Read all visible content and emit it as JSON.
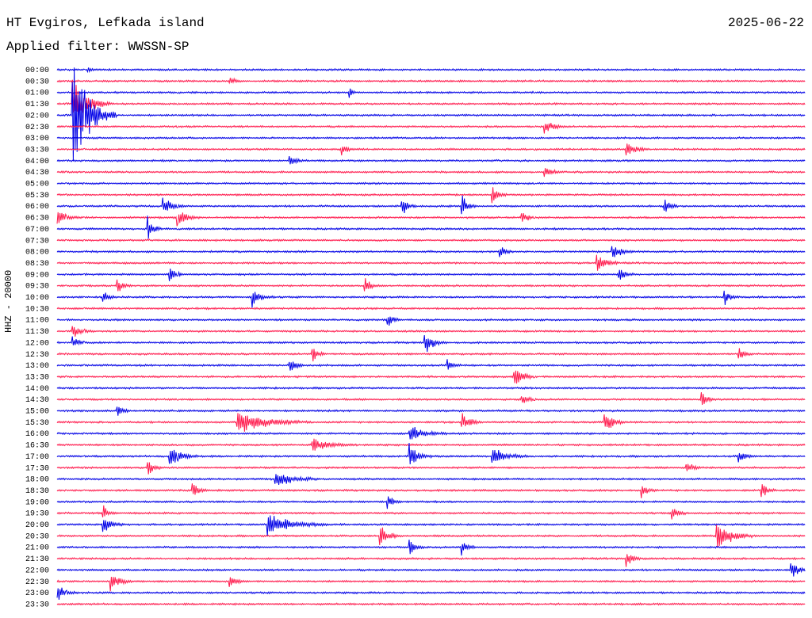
{
  "header": {
    "station": "HT Evgiros, Lefkada island",
    "filter": "Applied filter: WWSSN-SP",
    "date": "2025-06-22"
  },
  "colors": {
    "blue": "#0000e6",
    "red": "#ff1a4d"
  },
  "chart_data": {
    "type": "line",
    "title": "HT Evgiros, Lefkada island",
    "subtitle": "Applied filter: WWSSN-SP",
    "ylabel": "HHZ - 20000",
    "xlabel": "",
    "grid": false,
    "legend": "none",
    "ticks": [
      "00:00",
      "00:30",
      "01:00",
      "01:30",
      "02:00",
      "02:30",
      "03:00",
      "03:30",
      "04:00",
      "04:30",
      "05:00",
      "05:30",
      "06:00",
      "06:30",
      "07:00",
      "07:30",
      "08:00",
      "08:30",
      "09:00",
      "09:30",
      "10:00",
      "10:30",
      "11:00",
      "11:30",
      "12:00",
      "12:30",
      "13:00",
      "13:30",
      "14:00",
      "14:30",
      "15:00",
      "15:30",
      "16:00",
      "16:30",
      "17:00",
      "17:30",
      "18:00",
      "18:30",
      "19:00",
      "19:30",
      "20:00",
      "20:30",
      "21:00",
      "21:30",
      "22:00",
      "22:30",
      "23:00",
      "23:30"
    ],
    "trace_colors": [
      "blue",
      "red"
    ],
    "events": [
      {
        "row": 0,
        "x": 0.04,
        "amp": 6,
        "dur": 0.01
      },
      {
        "row": 1,
        "x": 0.23,
        "amp": 8,
        "dur": 0.015
      },
      {
        "row": 2,
        "x": 0.39,
        "amp": 10,
        "dur": 0.01
      },
      {
        "row": 3,
        "x": 0.02,
        "amp": 40,
        "dur": 0.05
      },
      {
        "row": 4,
        "x": 0.02,
        "amp": 90,
        "dur": 0.06
      },
      {
        "row": 5,
        "x": 0.65,
        "amp": 12,
        "dur": 0.03
      },
      {
        "row": 7,
        "x": 0.38,
        "amp": 9,
        "dur": 0.02
      },
      {
        "row": 7,
        "x": 0.76,
        "amp": 12,
        "dur": 0.03
      },
      {
        "row": 8,
        "x": 0.31,
        "amp": 10,
        "dur": 0.02
      },
      {
        "row": 9,
        "x": 0.65,
        "amp": 14,
        "dur": 0.02
      },
      {
        "row": 11,
        "x": 0.58,
        "amp": 16,
        "dur": 0.02
      },
      {
        "row": 12,
        "x": 0.14,
        "amp": 16,
        "dur": 0.03
      },
      {
        "row": 12,
        "x": 0.46,
        "amp": 16,
        "dur": 0.02
      },
      {
        "row": 12,
        "x": 0.54,
        "amp": 20,
        "dur": 0.02
      },
      {
        "row": 12,
        "x": 0.81,
        "amp": 18,
        "dur": 0.02
      },
      {
        "row": 13,
        "x": 0.0,
        "amp": 14,
        "dur": 0.03
      },
      {
        "row": 13,
        "x": 0.16,
        "amp": 18,
        "dur": 0.03
      },
      {
        "row": 13,
        "x": 0.62,
        "amp": 14,
        "dur": 0.02
      },
      {
        "row": 14,
        "x": 0.12,
        "amp": 22,
        "dur": 0.02
      },
      {
        "row": 16,
        "x": 0.59,
        "amp": 14,
        "dur": 0.02
      },
      {
        "row": 16,
        "x": 0.74,
        "amp": 14,
        "dur": 0.03
      },
      {
        "row": 17,
        "x": 0.72,
        "amp": 18,
        "dur": 0.03
      },
      {
        "row": 18,
        "x": 0.15,
        "amp": 14,
        "dur": 0.02
      },
      {
        "row": 18,
        "x": 0.75,
        "amp": 12,
        "dur": 0.02
      },
      {
        "row": 19,
        "x": 0.08,
        "amp": 14,
        "dur": 0.02
      },
      {
        "row": 19,
        "x": 0.41,
        "amp": 16,
        "dur": 0.02
      },
      {
        "row": 20,
        "x": 0.06,
        "amp": 14,
        "dur": 0.02
      },
      {
        "row": 20,
        "x": 0.26,
        "amp": 14,
        "dur": 0.03
      },
      {
        "row": 20,
        "x": 0.89,
        "amp": 14,
        "dur": 0.02
      },
      {
        "row": 22,
        "x": 0.44,
        "amp": 14,
        "dur": 0.02
      },
      {
        "row": 23,
        "x": 0.02,
        "amp": 10,
        "dur": 0.03
      },
      {
        "row": 24,
        "x": 0.49,
        "amp": 20,
        "dur": 0.03
      },
      {
        "row": 24,
        "x": 0.02,
        "amp": 12,
        "dur": 0.02
      },
      {
        "row": 25,
        "x": 0.34,
        "amp": 14,
        "dur": 0.02
      },
      {
        "row": 25,
        "x": 0.91,
        "amp": 12,
        "dur": 0.02
      },
      {
        "row": 26,
        "x": 0.31,
        "amp": 14,
        "dur": 0.02
      },
      {
        "row": 26,
        "x": 0.52,
        "amp": 12,
        "dur": 0.02
      },
      {
        "row": 27,
        "x": 0.61,
        "amp": 18,
        "dur": 0.03
      },
      {
        "row": 29,
        "x": 0.62,
        "amp": 12,
        "dur": 0.02
      },
      {
        "row": 29,
        "x": 0.86,
        "amp": 14,
        "dur": 0.02
      },
      {
        "row": 30,
        "x": 0.08,
        "amp": 12,
        "dur": 0.02
      },
      {
        "row": 31,
        "x": 0.24,
        "amp": 18,
        "dur": 0.1
      },
      {
        "row": 31,
        "x": 0.54,
        "amp": 14,
        "dur": 0.03
      },
      {
        "row": 31,
        "x": 0.73,
        "amp": 20,
        "dur": 0.03
      },
      {
        "row": 32,
        "x": 0.47,
        "amp": 14,
        "dur": 0.05
      },
      {
        "row": 33,
        "x": 0.34,
        "amp": 10,
        "dur": 0.06
      },
      {
        "row": 34,
        "x": 0.15,
        "amp": 16,
        "dur": 0.04
      },
      {
        "row": 34,
        "x": 0.47,
        "amp": 22,
        "dur": 0.03
      },
      {
        "row": 34,
        "x": 0.58,
        "amp": 14,
        "dur": 0.05
      },
      {
        "row": 34,
        "x": 0.91,
        "amp": 14,
        "dur": 0.02
      },
      {
        "row": 35,
        "x": 0.12,
        "amp": 18,
        "dur": 0.02
      },
      {
        "row": 35,
        "x": 0.84,
        "amp": 14,
        "dur": 0.02
      },
      {
        "row": 36,
        "x": 0.29,
        "amp": 14,
        "dur": 0.06
      },
      {
        "row": 37,
        "x": 0.18,
        "amp": 16,
        "dur": 0.02
      },
      {
        "row": 37,
        "x": 0.78,
        "amp": 12,
        "dur": 0.02
      },
      {
        "row": 37,
        "x": 0.94,
        "amp": 14,
        "dur": 0.02
      },
      {
        "row": 38,
        "x": 0.44,
        "amp": 14,
        "dur": 0.02
      },
      {
        "row": 39,
        "x": 0.06,
        "amp": 14,
        "dur": 0.02
      },
      {
        "row": 39,
        "x": 0.82,
        "amp": 16,
        "dur": 0.02
      },
      {
        "row": 40,
        "x": 0.28,
        "amp": 18,
        "dur": 0.08
      },
      {
        "row": 40,
        "x": 0.06,
        "amp": 14,
        "dur": 0.03
      },
      {
        "row": 41,
        "x": 0.43,
        "amp": 20,
        "dur": 0.03
      },
      {
        "row": 41,
        "x": 0.88,
        "amp": 26,
        "dur": 0.05
      },
      {
        "row": 42,
        "x": 0.47,
        "amp": 14,
        "dur": 0.02
      },
      {
        "row": 42,
        "x": 0.54,
        "amp": 14,
        "dur": 0.02
      },
      {
        "row": 43,
        "x": 0.76,
        "amp": 14,
        "dur": 0.02
      },
      {
        "row": 44,
        "x": 0.98,
        "amp": 20,
        "dur": 0.02
      },
      {
        "row": 45,
        "x": 0.07,
        "amp": 18,
        "dur": 0.03
      },
      {
        "row": 45,
        "x": 0.23,
        "amp": 14,
        "dur": 0.02
      },
      {
        "row": 46,
        "x": 0.0,
        "amp": 12,
        "dur": 0.03
      }
    ]
  }
}
